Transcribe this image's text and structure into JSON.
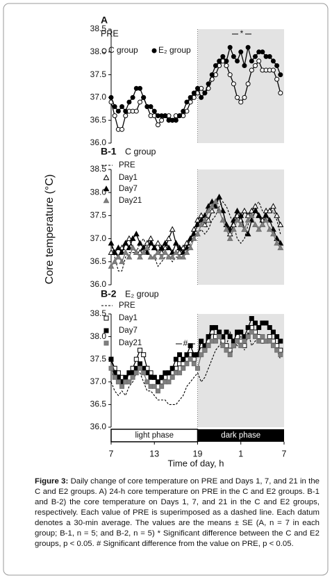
{
  "chart_data": [
    {
      "type": "line",
      "title": "A",
      "subtitle": "PRE",
      "x": [
        0,
        0.5,
        1,
        1.5,
        2,
        2.5,
        3,
        3.5,
        4,
        4.5,
        5,
        5.5,
        6,
        6.5,
        7,
        7.5,
        8,
        8.5,
        9,
        9.5,
        10,
        10.5,
        11,
        11.5,
        12,
        12.5,
        13,
        13.5,
        14,
        14.5,
        15,
        15.5,
        16,
        16.5,
        17,
        17.5,
        18,
        18.5,
        19,
        19.5,
        20,
        20.5,
        21,
        21.5,
        22,
        22.5,
        23,
        23.5
      ],
      "xlim": [
        0,
        24
      ],
      "ylim": [
        36,
        38.5
      ],
      "yticks": [
        {
          "value": 36,
          "label": "36.0"
        },
        36.5,
        {
          "value": 37,
          "label": "37.0"
        },
        37.5,
        {
          "value": 38,
          "label": "38.0"
        },
        38.5
      ],
      "annotation": "*",
      "series": [
        {
          "name": "C group",
          "color": "#ffffff",
          "marker": "circle",
          "values": [
            36.9,
            36.6,
            36.3,
            36.3,
            36.6,
            36.7,
            36.7,
            36.7,
            36.9,
            37.0,
            36.8,
            36.6,
            36.6,
            36.4,
            36.5,
            36.6,
            36.6,
            36.5,
            36.6,
            36.6,
            36.6,
            36.7,
            36.9,
            37.0,
            37.1,
            37.2,
            37.1,
            37.2,
            37.4,
            37.5,
            37.7,
            37.8,
            37.7,
            37.5,
            37.3,
            37.0,
            36.9,
            37.0,
            37.3,
            37.6,
            37.7,
            37.8,
            37.6,
            37.6,
            37.6,
            37.6,
            37.4,
            37.1
          ]
        },
        {
          "name": "E₂ group",
          "color": "#000000",
          "marker": "circle",
          "values": [
            37.0,
            36.8,
            36.7,
            36.8,
            36.7,
            36.9,
            37.0,
            37.2,
            37.2,
            37.0,
            36.8,
            36.8,
            36.7,
            36.6,
            36.6,
            36.6,
            36.5,
            36.5,
            36.5,
            36.6,
            36.7,
            36.9,
            37.0,
            37.1,
            37.2,
            37.0,
            37.1,
            37.3,
            37.5,
            37.7,
            37.8,
            37.9,
            37.8,
            38.1,
            37.9,
            37.8,
            38.0,
            37.7,
            38.1,
            37.8,
            37.9,
            38.0,
            38.0,
            37.9,
            37.9,
            37.8,
            37.7,
            37.5
          ]
        }
      ]
    },
    {
      "type": "line",
      "title": "B-1",
      "subtitle": "C group",
      "x": [
        0,
        0.5,
        1,
        1.5,
        2,
        2.5,
        3,
        3.5,
        4,
        4.5,
        5,
        5.5,
        6,
        6.5,
        7,
        7.5,
        8,
        8.5,
        9,
        9.5,
        10,
        10.5,
        11,
        11.5,
        12,
        12.5,
        13,
        13.5,
        14,
        14.5,
        15,
        15.5,
        16,
        16.5,
        17,
        17.5,
        18,
        18.5,
        19,
        19.5,
        20,
        20.5,
        21,
        21.5,
        22,
        22.5,
        23,
        23.5
      ],
      "xlim": [
        0,
        24
      ],
      "ylim": [
        36,
        38.5
      ],
      "yticks": [
        {
          "value": 36,
          "label": "36.0"
        },
        36.5,
        {
          "value": 37,
          "label": "37.0"
        },
        37.5,
        {
          "value": 38,
          "label": "38.0"
        },
        38.5
      ],
      "series": [
        {
          "name": "PRE",
          "color": "#000000",
          "marker": "none",
          "values": [
            36.9,
            36.6,
            36.3,
            36.3,
            36.6,
            36.7,
            36.7,
            36.7,
            36.9,
            37.0,
            36.8,
            36.6,
            36.6,
            36.4,
            36.5,
            36.6,
            36.6,
            36.5,
            36.6,
            36.6,
            36.6,
            36.7,
            36.9,
            37.0,
            37.1,
            37.2,
            37.1,
            37.2,
            37.4,
            37.5,
            37.7,
            37.8,
            37.7,
            37.5,
            37.3,
            37.0,
            36.9,
            37.0,
            37.3,
            37.6,
            37.7,
            37.8,
            37.6,
            37.6,
            37.6,
            37.6,
            37.4,
            37.1
          ]
        },
        {
          "name": "Day1",
          "color": "#ffffff",
          "marker": "triangle",
          "values": [
            36.7,
            36.7,
            36.6,
            36.8,
            36.9,
            37.0,
            36.8,
            36.7,
            36.7,
            36.8,
            36.9,
            37.0,
            36.8,
            36.9,
            36.7,
            36.8,
            37.0,
            37.2,
            36.9,
            36.7,
            36.8,
            36.9,
            37.0,
            37.2,
            37.4,
            37.5,
            37.3,
            37.4,
            37.6,
            37.8,
            37.9,
            37.6,
            37.3,
            37.1,
            37.3,
            37.5,
            37.4,
            37.6,
            37.5,
            37.6,
            37.7,
            37.5,
            37.4,
            37.6,
            37.6,
            37.7,
            37.5,
            37.3
          ]
        },
        {
          "name": "Day7",
          "color": "#000000",
          "marker": "triangle",
          "values": [
            36.9,
            36.7,
            36.8,
            36.7,
            36.9,
            36.8,
            37.0,
            37.1,
            36.9,
            36.8,
            36.7,
            36.9,
            36.8,
            36.7,
            36.8,
            36.9,
            36.8,
            36.7,
            36.9,
            36.8,
            36.7,
            36.8,
            37.0,
            37.1,
            37.3,
            37.4,
            37.5,
            37.7,
            37.8,
            37.7,
            37.9,
            37.6,
            37.3,
            37.2,
            37.4,
            37.6,
            37.5,
            37.2,
            37.1,
            37.4,
            37.6,
            37.5,
            37.3,
            37.5,
            37.4,
            37.2,
            37.0,
            36.9
          ]
        },
        {
          "name": "Day21",
          "color": "#808080",
          "marker": "triangle",
          "values": [
            36.4,
            36.5,
            36.6,
            36.5,
            36.7,
            36.6,
            36.8,
            36.7,
            36.6,
            36.7,
            36.8,
            36.6,
            36.6,
            36.7,
            36.6,
            36.7,
            36.6,
            36.6,
            36.7,
            36.6,
            36.6,
            36.7,
            36.8,
            37.0,
            37.1,
            37.3,
            37.4,
            37.6,
            37.7,
            37.8,
            37.6,
            37.4,
            37.2,
            37.0,
            37.2,
            37.4,
            37.3,
            37.2,
            37.4,
            37.5,
            37.3,
            37.2,
            37.3,
            37.4,
            37.2,
            37.1,
            36.9,
            36.8
          ]
        }
      ]
    },
    {
      "type": "line",
      "title": "B-2",
      "subtitle": "E₂ group",
      "x": [
        0,
        0.5,
        1,
        1.5,
        2,
        2.5,
        3,
        3.5,
        4,
        4.5,
        5,
        5.5,
        6,
        6.5,
        7,
        7.5,
        8,
        8.5,
        9,
        9.5,
        10,
        10.5,
        11,
        11.5,
        12,
        12.5,
        13,
        13.5,
        14,
        14.5,
        15,
        15.5,
        16,
        16.5,
        17,
        17.5,
        18,
        18.5,
        19,
        19.5,
        20,
        20.5,
        21,
        21.5,
        22,
        22.5,
        23,
        23.5
      ],
      "xlim": [
        0,
        24
      ],
      "ylim": [
        36,
        38.5
      ],
      "xticks": [
        {
          "value": 0,
          "label": "7"
        },
        {
          "value": 6,
          "label": "13"
        },
        {
          "value": 12,
          "label": "19"
        },
        {
          "value": 18,
          "label": "1"
        },
        {
          "value": 24,
          "label": "7"
        }
      ],
      "yticks": [
        {
          "value": 36,
          "label": "36.0"
        },
        36.5,
        {
          "value": 37,
          "label": "37.0"
        },
        37.5,
        {
          "value": 38,
          "label": "38.0"
        },
        38.5
      ],
      "annotation": "#",
      "series": [
        {
          "name": "PRE",
          "color": "#000000",
          "marker": "none",
          "values": [
            37.0,
            36.8,
            36.7,
            36.8,
            36.7,
            36.9,
            37.0,
            37.2,
            37.2,
            37.0,
            36.8,
            36.8,
            36.7,
            36.6,
            36.6,
            36.6,
            36.5,
            36.5,
            36.5,
            36.6,
            36.7,
            36.9,
            37.0,
            37.1,
            37.2,
            37.0,
            37.1,
            37.3,
            37.5,
            37.7,
            37.8,
            37.9,
            37.8,
            38.1,
            37.9,
            37.8,
            38.0,
            37.7,
            38.1,
            37.8,
            37.9,
            38.0,
            38.0,
            37.9,
            37.9,
            37.8,
            37.7,
            37.5
          ]
        },
        {
          "name": "Day1",
          "color": "#ffffff",
          "marker": "square",
          "values": [
            37.5,
            37.3,
            37.2,
            37.1,
            37.0,
            37.2,
            37.3,
            37.5,
            37.7,
            37.6,
            37.3,
            37.2,
            37.1,
            37.0,
            37.0,
            37.1,
            37.2,
            37.2,
            37.3,
            37.4,
            37.4,
            37.5,
            37.6,
            37.5,
            37.6,
            37.8,
            37.7,
            37.9,
            38.1,
            38.0,
            38.0,
            37.9,
            37.8,
            37.7,
            37.8,
            38.0,
            37.9,
            37.8,
            38.0,
            38.2,
            38.1,
            38.0,
            37.9,
            37.9,
            38.0,
            37.9,
            37.8,
            37.7
          ]
        },
        {
          "name": "Day7",
          "color": "#000000",
          "marker": "square",
          "values": [
            37.5,
            37.2,
            37.1,
            37.0,
            37.1,
            37.2,
            37.2,
            37.3,
            37.4,
            37.3,
            37.2,
            37.1,
            37.1,
            37.0,
            37.1,
            37.2,
            37.2,
            37.3,
            37.5,
            37.6,
            37.5,
            37.6,
            37.8,
            37.6,
            37.6,
            37.9,
            37.8,
            38.0,
            38.2,
            38.2,
            38.1,
            38.0,
            38.1,
            38.0,
            37.9,
            38.1,
            38.1,
            38.0,
            38.2,
            38.4,
            38.3,
            38.2,
            38.3,
            38.3,
            38.2,
            38.1,
            38.0,
            37.9
          ]
        },
        {
          "name": "Day21",
          "color": "#808080",
          "marker": "square",
          "values": [
            37.3,
            37.1,
            37.0,
            36.9,
            37.0,
            37.0,
            37.1,
            37.2,
            37.3,
            37.2,
            37.0,
            36.9,
            36.9,
            36.8,
            36.9,
            37.0,
            37.0,
            37.1,
            37.2,
            37.2,
            37.3,
            37.4,
            37.5,
            37.4,
            37.3,
            37.6,
            37.7,
            37.8,
            37.9,
            37.9,
            38.0,
            37.8,
            37.7,
            37.6,
            37.8,
            37.9,
            37.8,
            37.9,
            38.0,
            38.1,
            38.0,
            37.9,
            38.0,
            37.9,
            37.9,
            37.8,
            37.7,
            37.6
          ]
        }
      ]
    }
  ],
  "figure": {
    "ylabel": "Core temperature (°C)",
    "xlabel": "Time of day, h",
    "light_label": "light phase",
    "dark_label": "dark phase",
    "caption_label": "Figure 3:",
    "caption_text": "Daily change of core temperature on PRE and Days 1, 7, and 21 in the C and E2 groups. A) 24-h core temperature on PRE in the C and E2 groups. B-1 and B-2) the core temperature on Days 1, 7, and 21 in the C and E2 groups, respectively. Each value of PRE is superimposed as a dashed line. Each datum denotes a 30-min average. The values are the means ± SE (A, n = 7 in each group; B-1, n = 5; and B-2, n = 5) * Significant difference between the C and E2 groups, p < 0.05. # Significant difference from the value on PRE, p < 0.05."
  }
}
